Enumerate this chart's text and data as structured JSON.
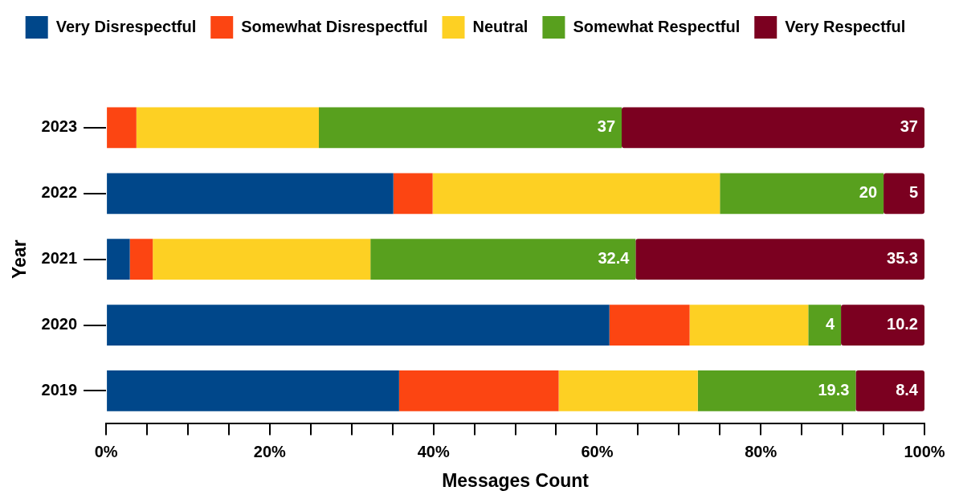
{
  "chart_data": {
    "type": "bar",
    "orientation": "horizontal",
    "stacked": true,
    "xlabel": "Messages Count",
    "ylabel": "Year",
    "categories": [
      "2023",
      "2022",
      "2021",
      "2020",
      "2019"
    ],
    "series": [
      {
        "name": "Very Disrespectful",
        "color": "#00478a",
        "values": [
          0,
          35.1,
          2.9,
          61.5,
          35.8
        ],
        "value_labels": [
          null,
          null,
          null,
          null,
          null
        ]
      },
      {
        "name": "Somewhat Disrespectful",
        "color": "#fc4512",
        "values": [
          3.7,
          4.8,
          2.8,
          9.8,
          19.5
        ],
        "value_labels": [
          null,
          null,
          null,
          null,
          null
        ]
      },
      {
        "name": "Neutral",
        "color": "#fdd023",
        "values": [
          22.3,
          35.1,
          26.6,
          14.5,
          17
        ],
        "value_labels": [
          null,
          null,
          null,
          null,
          null
        ]
      },
      {
        "name": "Somewhat Respectful",
        "color": "#58a01e",
        "values": [
          37,
          20,
          32.4,
          4,
          19.3
        ],
        "value_labels": [
          "37",
          "20",
          "32.4",
          "4",
          "19.3"
        ]
      },
      {
        "name": "Very Respectful",
        "color": "#7b0020",
        "values": [
          37,
          5,
          35.3,
          10.2,
          8.4
        ],
        "value_labels": [
          "37",
          "5",
          "35.3",
          "10.2",
          "8.4"
        ]
      }
    ],
    "xlim": [
      0,
      100
    ],
    "xticks": [
      {
        "value": 0,
        "label": "0%"
      },
      {
        "value": 5,
        "label": null
      },
      {
        "value": 10,
        "label": null
      },
      {
        "value": 15,
        "label": null
      },
      {
        "value": 20,
        "label": "20%"
      },
      {
        "value": 25,
        "label": null
      },
      {
        "value": 30,
        "label": null
      },
      {
        "value": 35,
        "label": null
      },
      {
        "value": 40,
        "label": "40%"
      },
      {
        "value": 45,
        "label": null
      },
      {
        "value": 50,
        "label": null
      },
      {
        "value": 55,
        "label": null
      },
      {
        "value": 60,
        "label": "60%"
      },
      {
        "value": 65,
        "label": null
      },
      {
        "value": 70,
        "label": null
      },
      {
        "value": 75,
        "label": null
      },
      {
        "value": 80,
        "label": "80%"
      },
      {
        "value": 85,
        "label": null
      },
      {
        "value": 90,
        "label": null
      },
      {
        "value": 95,
        "label": null
      },
      {
        "value": 100,
        "label": "100%"
      }
    ],
    "grid": false,
    "legend": "top"
  }
}
